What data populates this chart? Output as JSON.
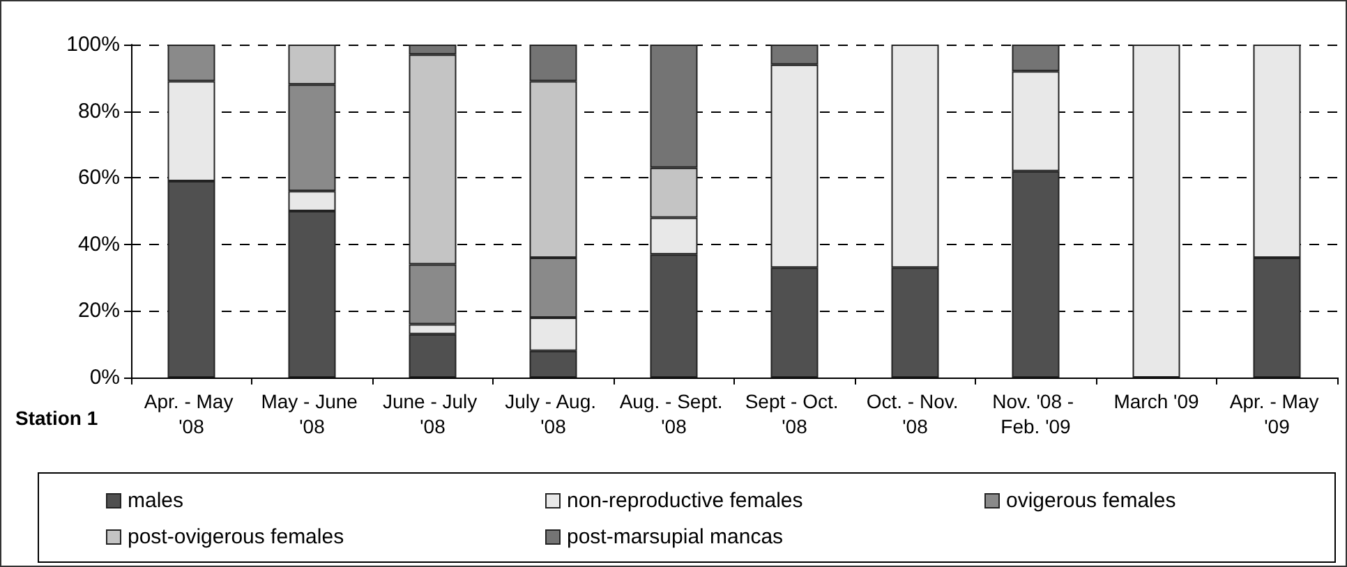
{
  "chart_data": {
    "type": "bar",
    "stacked": true,
    "categories": [
      "Apr. - May '08",
      "May - June '08",
      "June - July '08",
      "July - Aug. '08",
      "Aug. - Sept. '08",
      "Sept - Oct. '08",
      "Oct. - Nov. '08",
      "Nov. '08 - Feb. '09",
      "March '09",
      "Apr. - May '09"
    ],
    "series": [
      {
        "name": "males",
        "color": "#505050",
        "values": [
          59,
          50,
          13,
          8,
          37,
          33,
          33,
          62,
          0,
          36
        ]
      },
      {
        "name": "non-reproductive females",
        "color": "#e8e8e8",
        "values": [
          30,
          6,
          3,
          10,
          11,
          61,
          67,
          30,
          100,
          64
        ]
      },
      {
        "name": "ovigerous females",
        "color": "#8a8a8a",
        "values": [
          11,
          32,
          18,
          18,
          0,
          0,
          0,
          0,
          0,
          0
        ]
      },
      {
        "name": "post-ovigerous females",
        "color": "#c4c4c4",
        "values": [
          0,
          12,
          63,
          53,
          15,
          0,
          0,
          0,
          0,
          0
        ]
      },
      {
        "name": "post-marsupial mancas",
        "color": "#747474",
        "values": [
          0,
          0,
          3,
          11,
          37,
          6,
          0,
          8,
          0,
          0
        ]
      }
    ],
    "ylim": [
      0,
      100
    ],
    "yticks": [
      {
        "value": 0,
        "label": "0%"
      },
      {
        "value": 20,
        "label": "20%"
      },
      {
        "value": 40,
        "label": "40%"
      },
      {
        "value": 60,
        "label": "60%"
      },
      {
        "value": 80,
        "label": "80%"
      },
      {
        "value": 100,
        "label": "100%"
      }
    ],
    "grid": "y",
    "legend": "bottom",
    "annotations": [
      "Station 1"
    ]
  }
}
